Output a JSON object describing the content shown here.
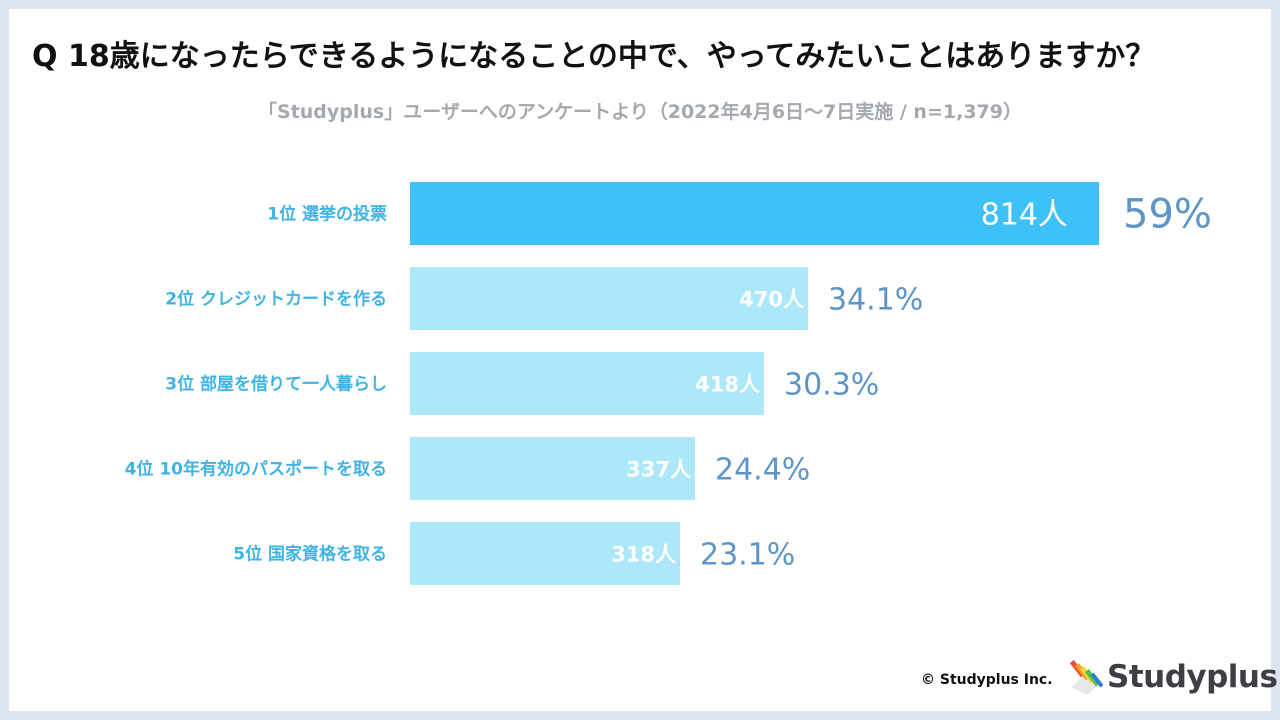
{
  "title": "Q 18歳になったらできるようになることの中で、やってみたいことはありますか？",
  "subtitle": "「Studyplus」ユーザーへのアンケートより（2022年4月6日〜7日実施 / n=1,379）",
  "chart_data": {
    "type": "bar",
    "orientation": "horizontal",
    "categories": [
      "1位 選挙の投票",
      "2位 クレジットカードを作る",
      "3位 部屋を借りて一人暮らし",
      "4位 10年有効のパスポートを取る",
      "5位 国家資格を取る"
    ],
    "counts": [
      814,
      470,
      418,
      337,
      318
    ],
    "count_labels": [
      "814人",
      "470人",
      "418人",
      "337人",
      "318人"
    ],
    "percent_values": [
      59,
      34.1,
      30.3,
      24.4,
      23.1
    ],
    "percent_labels": [
      "59%",
      "34.1%",
      "30.3%",
      "24.4%",
      "23.1%"
    ],
    "total": 1379,
    "highlight_index": 0,
    "colors": {
      "highlight_bar": "#3ec1f6",
      "bar": "#ade8fa",
      "category_text": "#3fb4e4",
      "percent_text": "#5e95c8",
      "count_text": "#ffffff"
    }
  },
  "footer": {
    "copyright": "© Studyplus Inc.",
    "logo_text": "Studyplus",
    "logo_icon": "stacked-books-pencil-icon"
  }
}
